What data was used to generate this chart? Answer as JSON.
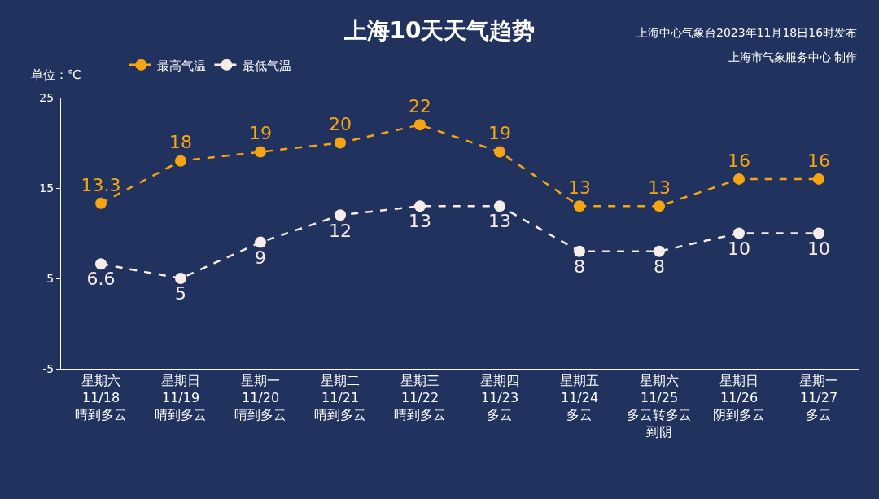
{
  "chart_data": {
    "type": "line",
    "title": "上海10天天气趋势",
    "ylabel": "单位：℃",
    "annotations": [
      "上海中心气象台2023年11月18日16时发布",
      "上海市气象服务中心 制作"
    ],
    "categories": [
      "星期六\n11/18\n晴到多云",
      "星期日\n11/19\n晴到多云",
      "星期一\n11/20\n晴到多云",
      "星期二\n11/21\n晴到多云",
      "星期三\n11/22\n晴到多云",
      "星期四\n11/23\n多云",
      "星期五\n11/24\n多云",
      "星期六\n11/25\n多云转多云到阴",
      "星期日\n11/26\n阴到多云",
      "星期一\n11/27\n多云"
    ],
    "series": [
      {
        "name": "最高气温",
        "color": "#f5a511",
        "values": [
          13.3,
          18,
          19,
          20,
          22,
          19,
          13,
          13,
          16,
          16
        ]
      },
      {
        "name": "最低气温",
        "color": "#f7ede8",
        "values": [
          6.6,
          5,
          9,
          12,
          13,
          13,
          8,
          8,
          10,
          10
        ]
      }
    ],
    "ylim": [
      -5,
      25
    ],
    "yticks": [
      -5,
      5,
      15,
      25
    ],
    "grid": false,
    "legend": "top left",
    "marker": "circle",
    "line_style": "dashed",
    "data_labels": true
  }
}
